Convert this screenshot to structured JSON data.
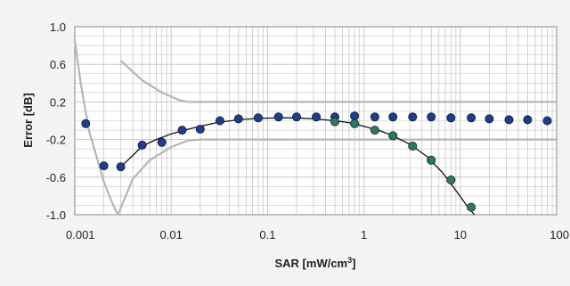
{
  "chart_data": {
    "type": "scatter",
    "title": "",
    "xlabel": "SAR [mW/cm³]",
    "xlabel_parts": {
      "main": "SAR [mW/cm",
      "sup": "3",
      "close": "]"
    },
    "ylabel": "Error [dB]",
    "xscale": "log",
    "xlim": [
      0.001,
      100
    ],
    "ylim": [
      -1.0,
      1.0
    ],
    "grid": true,
    "legend": "none",
    "x_ticks": [
      "0.001",
      "0.01",
      "0.1",
      "1",
      "10",
      "100"
    ],
    "y_ticks": [
      "1.0",
      "0.6",
      "0.2",
      "-0.2",
      "-0.6",
      "-1.0"
    ],
    "colors": {
      "blue_series": "#1f3d8a",
      "green_series": "#2f7a5e",
      "fit_curve": "#111111",
      "limit_lines": "#b5b5b5",
      "grid": "#c8c8c8"
    },
    "series": [
      {
        "marker": "circle",
        "color": "#1f3d8a",
        "x": [
          0.0013,
          0.002,
          0.003,
          0.005,
          0.008,
          0.013,
          0.02,
          0.032,
          0.05,
          0.08,
          0.13,
          0.2,
          0.32,
          0.5,
          0.8,
          1.3,
          2,
          3.2,
          5,
          8,
          13,
          20,
          32,
          50,
          80
        ],
        "y": [
          -0.03,
          -0.48,
          -0.49,
          -0.26,
          -0.23,
          -0.1,
          -0.09,
          0.0,
          0.02,
          0.03,
          0.04,
          0.04,
          0.04,
          0.04,
          0.05,
          0.04,
          0.04,
          0.04,
          0.04,
          0.03,
          0.03,
          0.02,
          0.01,
          0.01,
          0.0
        ]
      },
      {
        "marker": "circle",
        "color": "#2f7a5e",
        "x": [
          0.5,
          0.8,
          1.3,
          2,
          3.2,
          5,
          8,
          13
        ],
        "y": [
          -0.01,
          -0.03,
          -0.1,
          -0.16,
          -0.27,
          -0.42,
          -0.63,
          -0.92
        ]
      }
    ],
    "fit_curve": {
      "x": [
        0.003,
        0.004,
        0.005,
        0.007,
        0.01,
        0.015,
        0.02,
        0.03,
        0.05,
        0.08,
        0.13,
        0.2,
        0.3,
        0.5,
        0.7,
        1,
        1.5,
        2,
        3,
        4.5,
        6.5,
        9,
        12,
        14
      ],
      "y": [
        -0.49,
        -0.37,
        -0.27,
        -0.2,
        -0.14,
        -0.09,
        -0.06,
        -0.02,
        0.01,
        0.025,
        0.03,
        0.03,
        0.02,
        0.0,
        -0.02,
        -0.06,
        -0.11,
        -0.16,
        -0.25,
        -0.38,
        -0.55,
        -0.74,
        -0.92,
        -1.0
      ]
    },
    "limit_lines": [
      {
        "x": [
          0.001,
          0.00115,
          0.0014,
          0.002,
          0.0025,
          0.0028
        ],
        "y": [
          0.85,
          0.4,
          -0.1,
          -0.65,
          -0.9,
          -1.0
        ]
      },
      {
        "x": [
          0.003,
          0.005,
          0.008,
          0.012,
          0.015,
          0.02,
          100
        ],
        "y": [
          0.64,
          0.43,
          0.3,
          0.22,
          0.2,
          0.2,
          0.2
        ]
      },
      {
        "x": [
          0.0028,
          0.004,
          0.006,
          0.01,
          0.015,
          0.02,
          100
        ],
        "y": [
          -1.0,
          -0.62,
          -0.42,
          -0.28,
          -0.21,
          -0.2,
          -0.2
        ]
      }
    ]
  }
}
